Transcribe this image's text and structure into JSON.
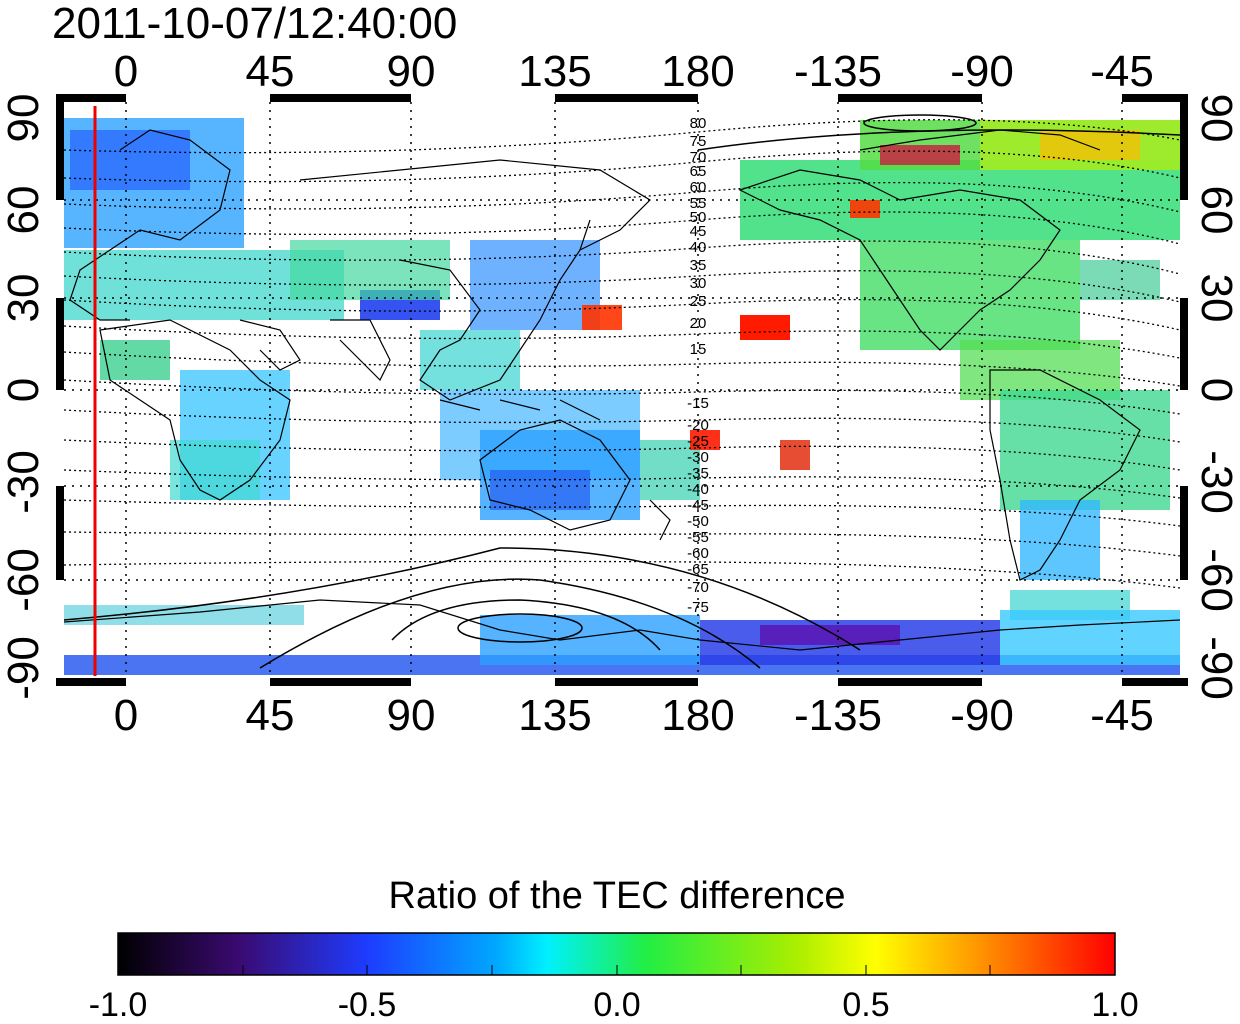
{
  "map": {
    "timestamp": "2011-10-07/12:40:00",
    "colorbar_title": "Ratio of the TEC difference",
    "top_lon_ticks": [
      "0",
      "45",
      "90",
      "135",
      "180",
      "-135",
      "-90",
      "-45"
    ],
    "bottom_lon_ticks": [
      "0",
      "45",
      "90",
      "135",
      "180",
      "-135",
      "-90",
      "-45"
    ],
    "left_lat_ticks": [
      "90",
      "60",
      "30",
      "0",
      "-30",
      "-60",
      "-90"
    ],
    "right_lat_ticks": [
      "90",
      "60",
      "30",
      "0",
      "-30",
      "-60",
      "-90"
    ],
    "colorbar_ticks": [
      "-1.0",
      "-0.5",
      "0.0",
      "0.5",
      "1.0"
    ],
    "colorbar_range": [
      -1.0,
      1.0
    ],
    "contour_labels_north": [
      "80",
      "75",
      "70",
      "65",
      "60",
      "55",
      "50",
      "45",
      "40",
      "35",
      "30",
      "25",
      "20",
      "15"
    ],
    "contour_labels_south": [
      "-15",
      "-20",
      "-25",
      "-30",
      "-35",
      "-40",
      "-45",
      "-50",
      "-55",
      "-60",
      "-65",
      "-70",
      "-75"
    ],
    "red_line_lon": -10,
    "colors": {
      "red_line": "#ee0000",
      "black": "#000000",
      "purple": "#5a0aa0",
      "blue": "#1e3cff",
      "cyan": "#00e8ff",
      "green": "#22ee22",
      "yellow": "#ffff00",
      "orange": "#ff9900",
      "red": "#ff0000"
    }
  }
}
